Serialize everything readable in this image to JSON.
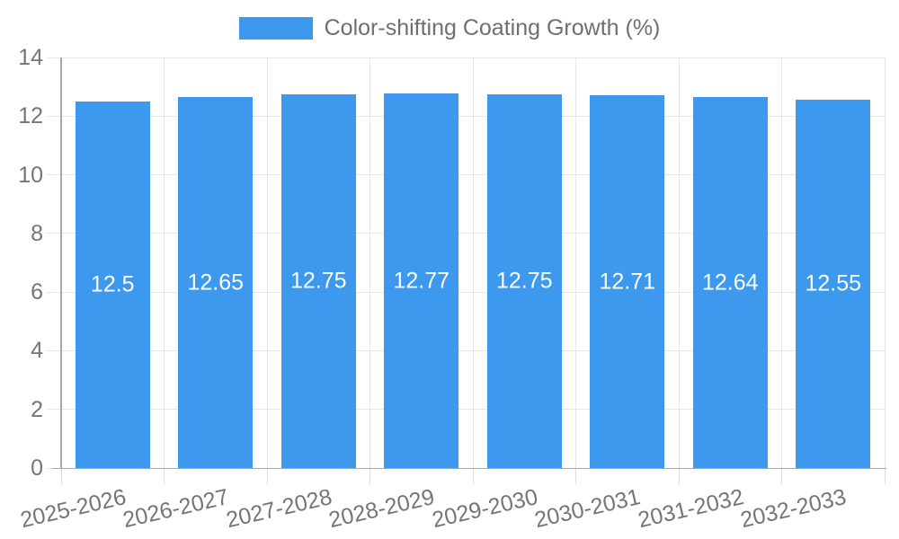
{
  "chart_data": {
    "type": "bar",
    "title": "Color-shifting Coating Growth (%)",
    "legend_position": "top",
    "categories": [
      "2025-2026",
      "2026-2027",
      "2027-2028",
      "2028-2029",
      "2029-2030",
      "2030-2031",
      "2031-2032",
      "2032-2033"
    ],
    "series": [
      {
        "name": "Color-shifting Coating Growth (%)",
        "values": [
          12.5,
          12.65,
          12.75,
          12.77,
          12.75,
          12.71,
          12.64,
          12.55
        ]
      }
    ],
    "value_labels": [
      "12.5",
      "12.65",
      "12.75",
      "12.77",
      "12.75",
      "12.71",
      "12.64",
      "12.55"
    ],
    "xlabel": "",
    "ylabel": "",
    "ylim": [
      0,
      14
    ],
    "yticks": [
      0,
      2,
      4,
      6,
      8,
      10,
      12,
      14
    ],
    "grid": true,
    "colors": {
      "bar": "#3C99EE",
      "value_label": "#FFFFFF",
      "tick_label": "#757575",
      "legend_text": "#6F6F6F",
      "gridline": "#E6E6E6",
      "axis_border": "#A8A8A8",
      "background": "#FFFFFF"
    }
  }
}
